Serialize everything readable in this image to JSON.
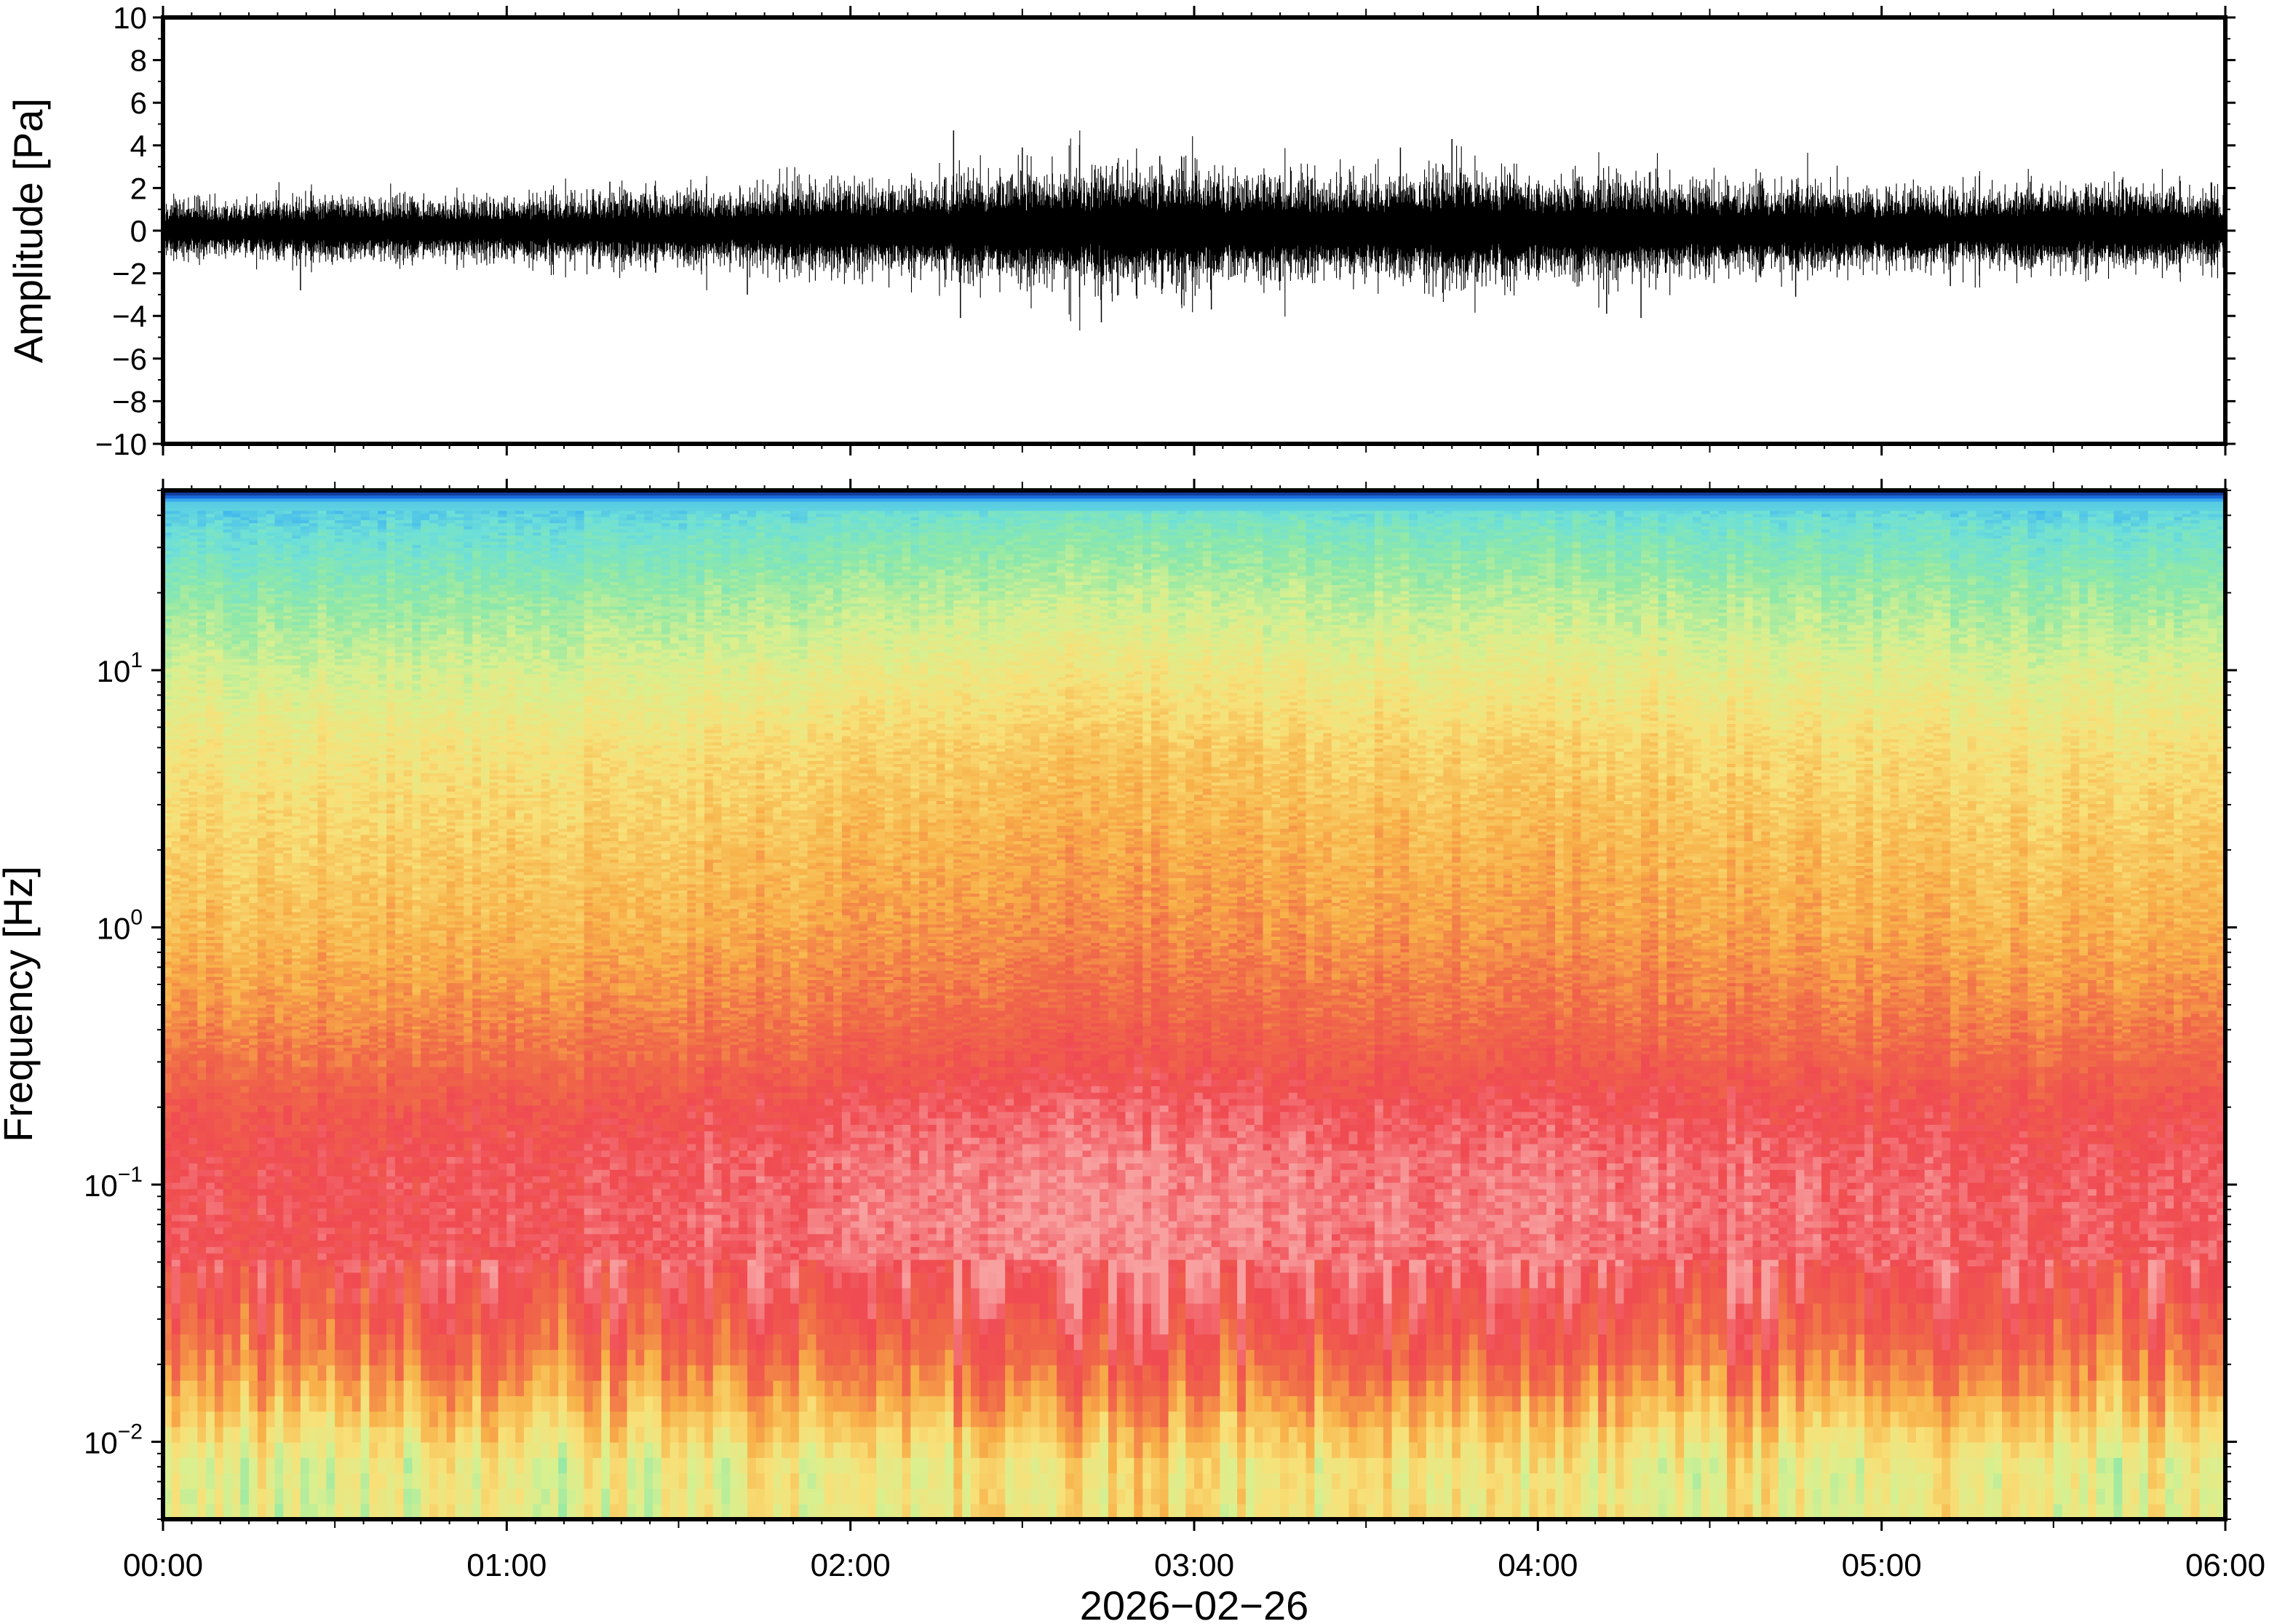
{
  "chart_data": [
    {
      "type": "line",
      "panel": "waveform",
      "title": "",
      "xlabel": "",
      "ylabel": "Amplitude [Pa]",
      "ylim": [
        -10,
        10
      ],
      "yticks": [
        -10,
        -8,
        -6,
        -4,
        -2,
        0,
        2,
        4,
        6,
        8,
        10
      ],
      "ytick_labels": [
        "−10",
        "−8",
        "−6",
        "−4",
        "−2",
        "0",
        "2",
        "4",
        "6",
        "8",
        "10"
      ],
      "xlim": [
        "00:00",
        "06:00"
      ],
      "grid": false,
      "line_color": "#000000",
      "series": [
        {
          "x_hours": [
            0.0,
            0.25,
            0.5,
            0.75,
            1.0,
            1.25,
            1.5,
            1.75,
            2.0,
            2.25,
            2.5,
            2.75,
            3.0,
            3.25,
            3.5,
            3.75,
            4.0,
            4.25,
            4.5,
            4.75,
            5.0,
            5.25,
            5.5,
            5.75,
            6.0
          ],
          "envelope_amplitude_pa": [
            1.2,
            1.1,
            1.3,
            1.2,
            1.3,
            1.4,
            1.5,
            1.7,
            1.8,
            2.0,
            2.3,
            2.4,
            2.4,
            2.2,
            2.1,
            2.3,
            2.2,
            2.1,
            1.9,
            1.8,
            1.6,
            1.6,
            1.7,
            1.8,
            1.5
          ],
          "peaks": [
            {
              "x_hours": 0.4,
              "value": -2.8
            },
            {
              "x_hours": 1.3,
              "value": 2.3
            },
            {
              "x_hours": 1.7,
              "value": -3.0
            },
            {
              "x_hours": 2.3,
              "value": 4.7
            },
            {
              "x_hours": 2.32,
              "value": -4.1
            },
            {
              "x_hours": 2.5,
              "value": 3.9
            },
            {
              "x_hours": 2.73,
              "value": -4.3
            },
            {
              "x_hours": 2.9,
              "value": 3.5
            },
            {
              "x_hours": 3.05,
              "value": -3.7
            },
            {
              "x_hours": 3.6,
              "value": 3.9
            },
            {
              "x_hours": 3.75,
              "value": 4.3
            },
            {
              "x_hours": 4.2,
              "value": -3.9
            },
            {
              "x_hours": 4.3,
              "value": -4.1
            },
            {
              "x_hours": 4.75,
              "value": -3.1
            },
            {
              "x_hours": 5.2,
              "value": -2.6
            },
            {
              "x_hours": 5.7,
              "value": 2.4
            }
          ]
        }
      ]
    },
    {
      "type": "heatmap",
      "panel": "spectrogram",
      "title": "",
      "xlabel": "2026−02−26",
      "ylabel": "Frequency [Hz]",
      "xlim": [
        "00:00",
        "06:00"
      ],
      "xticks": [
        "00:00",
        "01:00",
        "02:00",
        "03:00",
        "04:00",
        "05:00",
        "06:00"
      ],
      "yscale": "log",
      "ylim_hz": [
        0.005,
        50
      ],
      "yticks_hz": [
        0.01,
        0.1,
        1,
        10
      ],
      "ytick_labels": [
        {
          "base": "10",
          "exp": "−2"
        },
        {
          "base": "10",
          "exp": "−1"
        },
        {
          "base": "10",
          "exp": "0"
        },
        {
          "base": "10",
          "exp": "1"
        }
      ],
      "colormap": "rainbow (blue → cyan → green → yellow → orange → red → pink)",
      "colormap_stops": [
        "#0b0a5a",
        "#1a6fe0",
        "#3fb5f0",
        "#6ee0d8",
        "#8ee8a8",
        "#d8f090",
        "#f8e078",
        "#f8b048",
        "#f06a48",
        "#f04a52",
        "#f8a0a0"
      ],
      "grid": false,
      "colorbar": false,
      "level_profile": {
        "description": "relative level 0–1 vs frequency (log Hz), median over time",
        "freq_hz": [
          0.005,
          0.008,
          0.012,
          0.02,
          0.03,
          0.05,
          0.08,
          0.12,
          0.2,
          0.3,
          0.5,
          1,
          2,
          5,
          10,
          20,
          35,
          45,
          48
        ],
        "level": [
          0.55,
          0.55,
          0.65,
          0.78,
          0.85,
          0.92,
          0.93,
          0.92,
          0.88,
          0.82,
          0.76,
          0.7,
          0.66,
          0.6,
          0.52,
          0.42,
          0.32,
          0.25,
          0.05
        ]
      },
      "time_modulation": {
        "x_hours": [
          0.0,
          0.5,
          1.0,
          1.5,
          2.0,
          2.5,
          3.0,
          3.5,
          4.0,
          4.5,
          5.0,
          5.5,
          6.0
        ],
        "offset": [
          -0.03,
          -0.02,
          -0.02,
          0.0,
          0.02,
          0.05,
          0.05,
          0.03,
          0.04,
          0.02,
          0.0,
          -0.01,
          0.0
        ]
      }
    }
  ]
}
